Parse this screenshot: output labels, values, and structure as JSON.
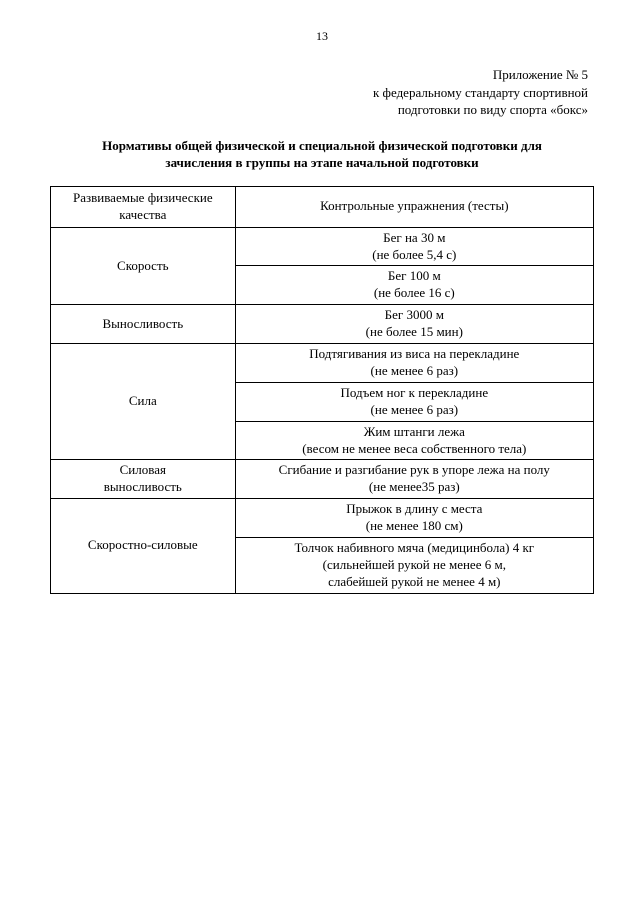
{
  "page_number": "13",
  "appendix": {
    "line1": "Приложение № 5",
    "line2": "к федеральному стандарту спортивной",
    "line3": "подготовки по виду спорта «бокс»"
  },
  "title": {
    "line1": "Нормативы общей физической и специальной физической подготовки для",
    "line2": "зачисления в группы на этапе начальной подготовки"
  },
  "table": {
    "header_left": "Развиваемые физические качества",
    "header_right": "Контрольные упражнения (тесты)",
    "rows": [
      {
        "quality": "Скорость",
        "rowspan": 2,
        "tests": [
          "Бег на 30 м<br>(не более 5,4 с)",
          "Бег 100 м<br>(не более 16 с)"
        ]
      },
      {
        "quality": "Выносливость",
        "rowspan": 1,
        "tests": [
          "Бег 3000 м<br>(не более 15 мин)"
        ]
      },
      {
        "quality": "Сила",
        "rowspan": 3,
        "tests": [
          "Подтягивания из виса на перекладине<br>(не менее 6 раз)",
          "Подъем ног к перекладине<br>(не менее 6 раз)",
          "Жим штанги лежа<br>(весом не менее веса собственного тела)"
        ]
      },
      {
        "quality": "Силовая выносливость",
        "rowspan": 1,
        "quality_html": "Силовая<br>выносливость",
        "tests": [
          "Сгибание и разгибание рук в упоре лежа на полу<br>(не менее35 раз)"
        ]
      },
      {
        "quality": "Скоростно-силовые",
        "rowspan": 2,
        "tests": [
          "Прыжок в длину с места<br>(не менее 180 см)",
          "Толчок набивного мяча (медицинбола) 4 кг<br>(сильнейшей рукой не менее 6 м,<br>слабейшей рукой не менее 4 м)"
        ]
      }
    ]
  }
}
